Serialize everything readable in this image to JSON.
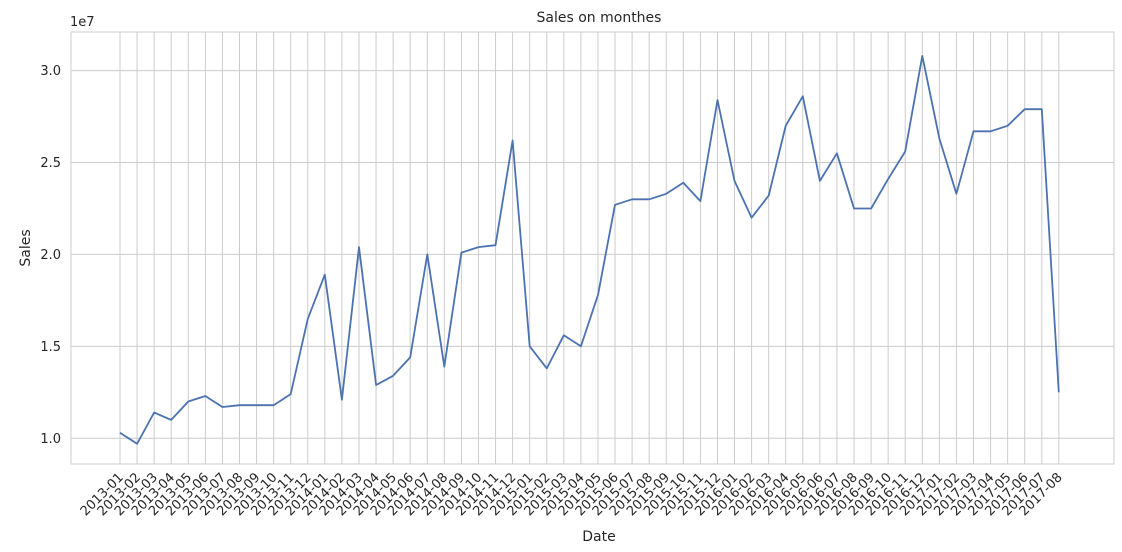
{
  "chart_data": {
    "type": "line",
    "title": "Sales on monthes",
    "xlabel": "Date",
    "ylabel": "Sales",
    "y_scale_label": "1e7",
    "ylim": [
      0.86,
      3.21
    ],
    "y_ticks": [
      "1.0",
      "1.5",
      "2.0",
      "2.5",
      "3.0"
    ],
    "y_tick_values": [
      1.0,
      1.5,
      2.0,
      2.5,
      3.0
    ],
    "grid": true,
    "line_color": "#4c72b0",
    "categories": [
      "2013-01",
      "2013-02",
      "2013-03",
      "2013-04",
      "2013-05",
      "2013-06",
      "2013-07",
      "2013-08",
      "2013-09",
      "2013-10",
      "2013-11",
      "2013-12",
      "2014-01",
      "2014-02",
      "2014-03",
      "2014-04",
      "2014-05",
      "2014-06",
      "2014-07",
      "2014-08",
      "2014-09",
      "2014-10",
      "2014-11",
      "2014-12",
      "2015-01",
      "2015-02",
      "2015-03",
      "2015-04",
      "2015-05",
      "2015-06",
      "2015-07",
      "2015-08",
      "2015-09",
      "2015-10",
      "2015-11",
      "2015-12",
      "2016-01",
      "2016-02",
      "2016-03",
      "2016-04",
      "2016-05",
      "2016-06",
      "2016-07",
      "2016-08",
      "2016-09",
      "2016-10",
      "2016-11",
      "2016-12",
      "2017-01",
      "2017-02",
      "2017-03",
      "2017-04",
      "2017-05",
      "2017-06",
      "2017-07",
      "2017-08"
    ],
    "series": [
      {
        "values": [
          1.03,
          0.97,
          1.14,
          1.1,
          1.2,
          1.23,
          1.17,
          1.18,
          1.18,
          1.18,
          1.24,
          1.65,
          1.89,
          1.21,
          2.04,
          1.29,
          1.34,
          1.44,
          2.0,
          1.39,
          2.01,
          2.04,
          2.05,
          2.62,
          1.5,
          1.38,
          1.56,
          1.5,
          1.78,
          2.27,
          2.3,
          2.3,
          2.33,
          2.39,
          2.29,
          2.84,
          2.4,
          2.2,
          2.32,
          2.7,
          2.86,
          2.4,
          2.55,
          2.25,
          2.25,
          2.41,
          2.56,
          3.08,
          2.63,
          2.33,
          2.67,
          2.67,
          2.7,
          2.79,
          2.79,
          1.25
        ]
      }
    ]
  }
}
